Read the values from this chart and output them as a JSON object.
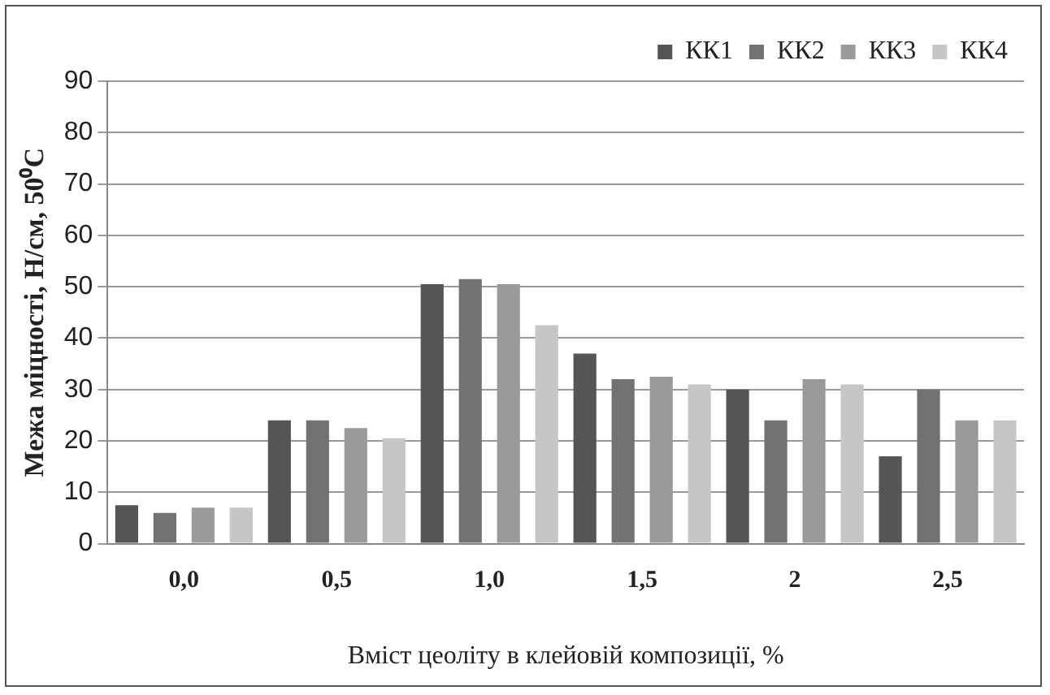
{
  "chart_data": {
    "type": "bar",
    "xlabel": "Вміст цеоліту в клейовій композиції, %",
    "ylabel": "Межа міцності, Н/см, 50⁰С",
    "categories": [
      "0,0",
      "0,5",
      "1,0",
      "1,5",
      "2",
      "2,5"
    ],
    "series": [
      {
        "name": "КК1",
        "color": "#555555",
        "values": [
          7.5,
          24,
          50.5,
          37,
          30,
          17
        ]
      },
      {
        "name": "КК2",
        "color": "#727272",
        "values": [
          6,
          24,
          51.5,
          32,
          24,
          30
        ]
      },
      {
        "name": "КК3",
        "color": "#9a9a9a",
        "values": [
          7,
          22.5,
          50.5,
          32.5,
          32,
          24
        ]
      },
      {
        "name": "КК4",
        "color": "#c6c6c6",
        "values": [
          7,
          20.5,
          42.5,
          31,
          31,
          24
        ]
      }
    ],
    "ylim": [
      0,
      90
    ],
    "yticks": [
      0,
      10,
      20,
      30,
      40,
      50,
      60,
      70,
      80,
      90
    ],
    "grid": "y",
    "legend": "top right"
  }
}
